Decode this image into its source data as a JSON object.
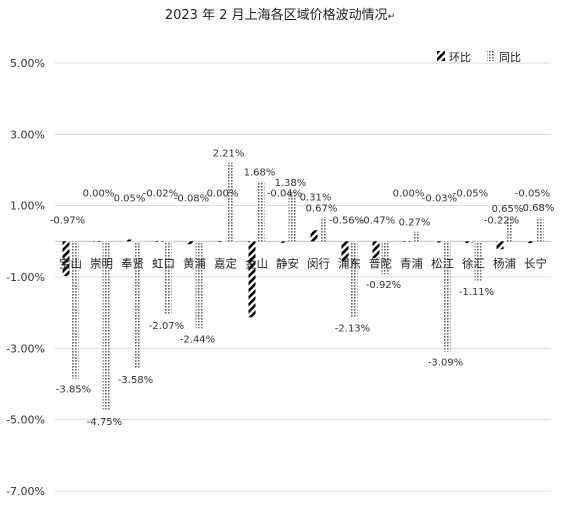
{
  "chart_data": {
    "type": "bar",
    "title": "2023 年 2 月上海各区域价格波动情况",
    "title_mark": "↵",
    "xlabel": "",
    "ylabel": "",
    "ylim": [
      -7,
      5
    ],
    "yticks": [
      5,
      3,
      1,
      -1,
      -3,
      -5,
      -7
    ],
    "ytick_labels": [
      "5.00%",
      "3.00%",
      "1.00%",
      "-1.00%",
      "-3.00%",
      "-5.00%",
      "-7.00%"
    ],
    "grid": true,
    "legend_position": "top-right",
    "categories": [
      "宝山",
      "崇明",
      "奉贤",
      "虹口",
      "黄浦",
      "嘉定",
      "金山",
      "静安",
      "闵行",
      "浦东",
      "普陀",
      "青浦",
      "松江",
      "徐汇",
      "杨浦",
      "长宁"
    ],
    "series": [
      {
        "name": "环比",
        "pattern": "diagonal-hatch",
        "color": "#000000",
        "values": [
          -0.97,
          0.0,
          0.05,
          -0.02,
          -0.08,
          0.0,
          -2.13,
          -0.04,
          0.31,
          -0.56,
          -0.47,
          0.0,
          -0.03,
          -0.05,
          -0.22,
          -0.05
        ],
        "labels": [
          "-0.97%",
          "0.00%",
          "0.05%",
          "-0.02%",
          "-0.08%",
          "0.00%",
          "",
          "-0.04%",
          "0.31%",
          "-0.56%",
          "-0.47%",
          "0.00%",
          "-0.03%",
          "-0.05%",
          "-0.22%",
          "-0.05%"
        ]
      },
      {
        "name": "同比",
        "pattern": "dotted-grid",
        "color": "#888888",
        "values": [
          -3.85,
          -4.75,
          -3.58,
          -2.07,
          -2.44,
          2.21,
          1.68,
          1.38,
          0.67,
          -2.13,
          -0.92,
          0.27,
          -3.09,
          -1.11,
          0.65,
          0.68
        ],
        "labels": [
          "-3.85%",
          "-4.75%",
          "-3.58%",
          "-2.07%",
          "-2.44%",
          "2.21%",
          "1.68%",
          "1.38%",
          "0.67%",
          "-2.13%",
          "-0.92%",
          "0.27%",
          "-3.09%",
          "-1.11%",
          "0.65%",
          "0.68%"
        ]
      }
    ]
  }
}
